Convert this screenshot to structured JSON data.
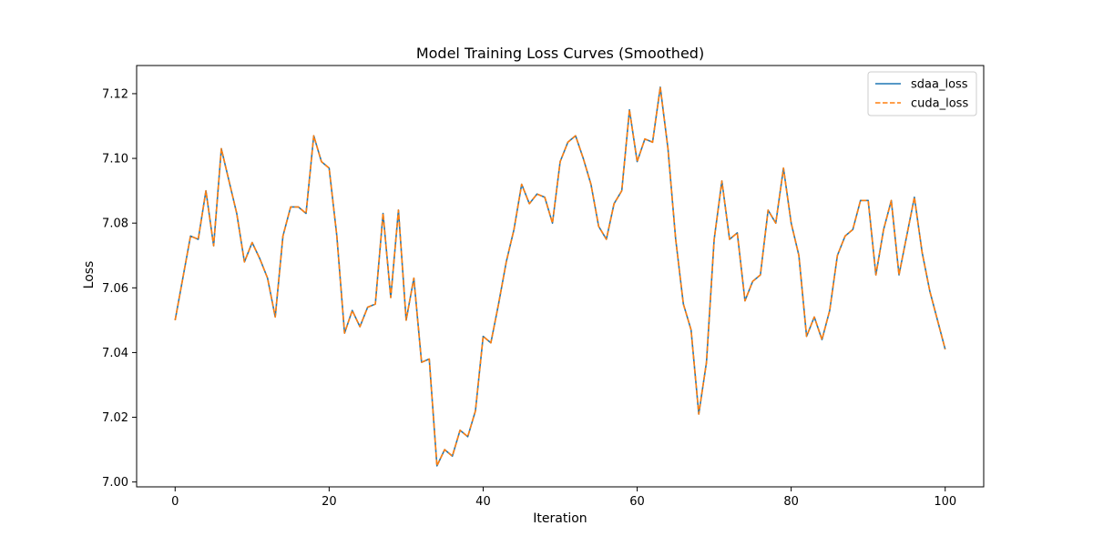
{
  "chart_data": {
    "type": "line",
    "title": "Model Training Loss Curves (Smoothed)",
    "xlabel": "Iteration",
    "ylabel": "Loss",
    "xlim": [
      -5,
      105
    ],
    "ylim": [
      6.9985,
      7.1287
    ],
    "x_ticks": [
      0,
      20,
      40,
      60,
      80,
      100
    ],
    "x_tick_labels": [
      "0",
      "20",
      "40",
      "60",
      "80",
      "100"
    ],
    "y_ticks": [
      7.0,
      7.02,
      7.04,
      7.06,
      7.08,
      7.1,
      7.12
    ],
    "y_tick_labels": [
      "7.00",
      "7.02",
      "7.04",
      "7.06",
      "7.08",
      "7.10",
      "7.12"
    ],
    "grid": false,
    "legend_position": "top-right",
    "x": [
      0,
      1,
      2,
      3,
      4,
      5,
      6,
      7,
      8,
      9,
      10,
      11,
      12,
      13,
      14,
      15,
      16,
      17,
      18,
      19,
      20,
      21,
      22,
      23,
      24,
      25,
      26,
      27,
      28,
      29,
      30,
      31,
      32,
      33,
      34,
      35,
      36,
      37,
      38,
      39,
      40,
      41,
      42,
      43,
      44,
      45,
      46,
      47,
      48,
      49,
      50,
      51,
      52,
      53,
      54,
      55,
      56,
      57,
      58,
      59,
      60,
      61,
      62,
      63,
      64,
      65,
      66,
      67,
      68,
      69,
      70,
      71,
      72,
      73,
      74,
      75,
      76,
      77,
      78,
      79,
      80,
      81,
      82,
      83,
      84,
      85,
      86,
      87,
      88,
      89,
      90,
      91,
      92,
      93,
      94,
      95,
      96,
      97,
      98,
      99,
      100
    ],
    "series": [
      {
        "name": "sdaa_loss",
        "color": "#1f77b4",
        "dash": "solid",
        "values": [
          7.05,
          7.063,
          7.076,
          7.075,
          7.09,
          7.073,
          7.103,
          7.093,
          7.083,
          7.068,
          7.074,
          7.069,
          7.063,
          7.051,
          7.076,
          7.085,
          7.085,
          7.083,
          7.107,
          7.099,
          7.097,
          7.076,
          7.046,
          7.053,
          7.048,
          7.054,
          7.055,
          7.083,
          7.057,
          7.084,
          7.05,
          7.063,
          7.037,
          7.038,
          7.005,
          7.01,
          7.008,
          7.016,
          7.014,
          7.022,
          7.045,
          7.043,
          7.055,
          7.068,
          7.078,
          7.092,
          7.086,
          7.089,
          7.088,
          7.08,
          7.099,
          7.105,
          7.107,
          7.1,
          7.092,
          7.079,
          7.075,
          7.086,
          7.09,
          7.115,
          7.099,
          7.106,
          7.105,
          7.122,
          7.103,
          7.075,
          7.055,
          7.047,
          7.021,
          7.037,
          7.075,
          7.093,
          7.075,
          7.077,
          7.056,
          7.062,
          7.064,
          7.084,
          7.08,
          7.097,
          7.08,
          7.07,
          7.045,
          7.051,
          7.044,
          7.053,
          7.07,
          7.076,
          7.078,
          7.087,
          7.087,
          7.064,
          7.078,
          7.087,
          7.064,
          7.076,
          7.088,
          7.071,
          7.059,
          7.05,
          7.041
        ]
      },
      {
        "name": "cuda_loss",
        "color": "#ff7f0e",
        "dash": "dashed",
        "values": [
          7.05,
          7.063,
          7.076,
          7.075,
          7.09,
          7.073,
          7.103,
          7.093,
          7.083,
          7.068,
          7.074,
          7.069,
          7.063,
          7.051,
          7.076,
          7.085,
          7.085,
          7.083,
          7.107,
          7.099,
          7.097,
          7.076,
          7.046,
          7.053,
          7.048,
          7.054,
          7.055,
          7.083,
          7.057,
          7.084,
          7.05,
          7.063,
          7.037,
          7.038,
          7.005,
          7.01,
          7.008,
          7.016,
          7.014,
          7.022,
          7.045,
          7.043,
          7.055,
          7.068,
          7.078,
          7.092,
          7.086,
          7.089,
          7.088,
          7.08,
          7.099,
          7.105,
          7.107,
          7.1,
          7.092,
          7.079,
          7.075,
          7.086,
          7.09,
          7.115,
          7.099,
          7.106,
          7.105,
          7.122,
          7.103,
          7.075,
          7.055,
          7.047,
          7.021,
          7.037,
          7.075,
          7.093,
          7.075,
          7.077,
          7.056,
          7.062,
          7.064,
          7.084,
          7.08,
          7.097,
          7.08,
          7.07,
          7.045,
          7.051,
          7.044,
          7.053,
          7.07,
          7.076,
          7.078,
          7.087,
          7.087,
          7.064,
          7.078,
          7.087,
          7.064,
          7.076,
          7.088,
          7.071,
          7.059,
          7.05,
          7.041
        ]
      }
    ]
  }
}
